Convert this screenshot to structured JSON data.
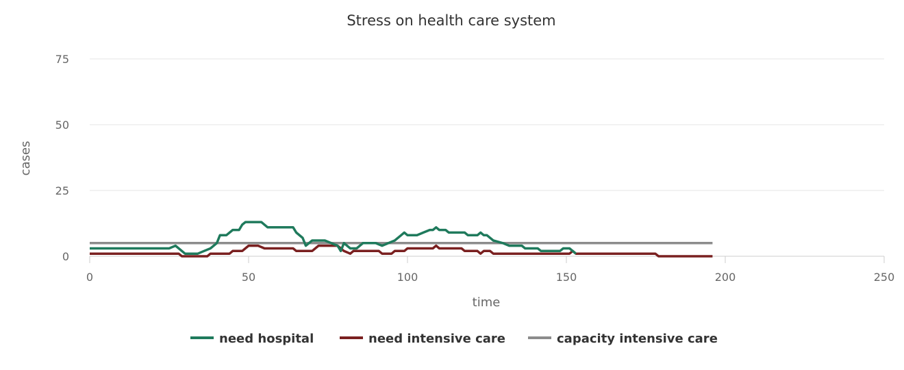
{
  "chart_data": {
    "type": "line",
    "title": "Stress on health care system",
    "xlabel": "time",
    "ylabel": "cases",
    "xlim": [
      0,
      250
    ],
    "ylim": [
      0,
      75
    ],
    "x_ticks": [
      0,
      50,
      100,
      150,
      200,
      250
    ],
    "y_ticks": [
      0,
      25,
      50,
      75
    ],
    "grid": "horizontal",
    "legend_position": "bottom",
    "series": [
      {
        "name": "need hospital",
        "color": "#1f7a5c",
        "points": [
          [
            0,
            3
          ],
          [
            25,
            3
          ],
          [
            27,
            4
          ],
          [
            30,
            1
          ],
          [
            34,
            1
          ],
          [
            36,
            2
          ],
          [
            38,
            3
          ],
          [
            40,
            5
          ],
          [
            41,
            8
          ],
          [
            43,
            8
          ],
          [
            45,
            10
          ],
          [
            47,
            10
          ],
          [
            48,
            12
          ],
          [
            49,
            13
          ],
          [
            53,
            13
          ],
          [
            54,
            13
          ],
          [
            56,
            11
          ],
          [
            64,
            11
          ],
          [
            65,
            9
          ],
          [
            67,
            7
          ],
          [
            68,
            4
          ],
          [
            70,
            6
          ],
          [
            74,
            6
          ],
          [
            76,
            5
          ],
          [
            78,
            4
          ],
          [
            79,
            2
          ],
          [
            80,
            5
          ],
          [
            82,
            3
          ],
          [
            84,
            3
          ],
          [
            86,
            5
          ],
          [
            90,
            5
          ],
          [
            92,
            4
          ],
          [
            94,
            5
          ],
          [
            96,
            6
          ],
          [
            98,
            8
          ],
          [
            99,
            9
          ],
          [
            100,
            8
          ],
          [
            103,
            8
          ],
          [
            105,
            9
          ],
          [
            107,
            10
          ],
          [
            108,
            10
          ],
          [
            109,
            11
          ],
          [
            110,
            10
          ],
          [
            112,
            10
          ],
          [
            113,
            9
          ],
          [
            118,
            9
          ],
          [
            119,
            8
          ],
          [
            122,
            8
          ],
          [
            123,
            9
          ],
          [
            124,
            8
          ],
          [
            125,
            8
          ],
          [
            127,
            6
          ],
          [
            130,
            5
          ],
          [
            132,
            4
          ],
          [
            136,
            4
          ],
          [
            137,
            3
          ],
          [
            141,
            3
          ],
          [
            142,
            2
          ],
          [
            148,
            2
          ],
          [
            149,
            3
          ],
          [
            151,
            3
          ],
          [
            153,
            1
          ]
        ]
      },
      {
        "name": "need intensive care",
        "color": "#7a2020",
        "points": [
          [
            0,
            1
          ],
          [
            28,
            1
          ],
          [
            29,
            0
          ],
          [
            37,
            0
          ],
          [
            38,
            1
          ],
          [
            44,
            1
          ],
          [
            45,
            2
          ],
          [
            48,
            2
          ],
          [
            50,
            4
          ],
          [
            53,
            4
          ],
          [
            55,
            3
          ],
          [
            64,
            3
          ],
          [
            65,
            2
          ],
          [
            70,
            2
          ],
          [
            72,
            4
          ],
          [
            78,
            4
          ],
          [
            80,
            2
          ],
          [
            82,
            1
          ],
          [
            83,
            2
          ],
          [
            91,
            2
          ],
          [
            92,
            1
          ],
          [
            95,
            1
          ],
          [
            96,
            2
          ],
          [
            99,
            2
          ],
          [
            100,
            3
          ],
          [
            108,
            3
          ],
          [
            109,
            4
          ],
          [
            110,
            3
          ],
          [
            117,
            3
          ],
          [
            118,
            2
          ],
          [
            122,
            2
          ],
          [
            123,
            1
          ],
          [
            124,
            2
          ],
          [
            126,
            2
          ],
          [
            127,
            1
          ],
          [
            151,
            1
          ],
          [
            152,
            2
          ],
          [
            153,
            1
          ],
          [
            178,
            1
          ],
          [
            179,
            0
          ],
          [
            196,
            0
          ]
        ]
      },
      {
        "name": "capacity intensive care",
        "color": "#8c8c8c",
        "points": [
          [
            0,
            5
          ],
          [
            196,
            5
          ]
        ]
      }
    ]
  }
}
